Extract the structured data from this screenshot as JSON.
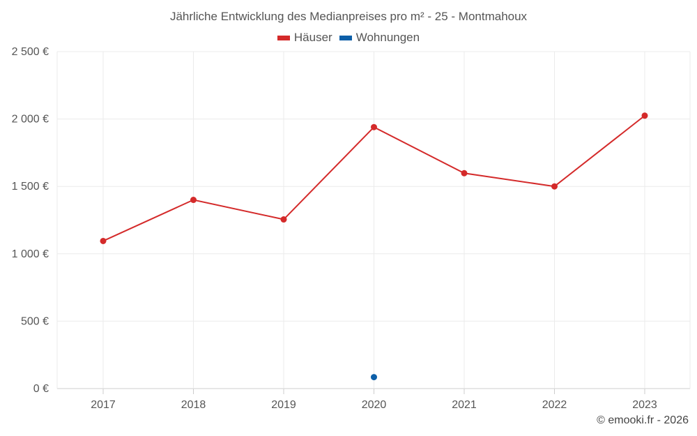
{
  "chart_data": {
    "type": "line",
    "title": "Jährliche Entwicklung des Medianpreises pro m² - 25 - Montmahoux",
    "categories": [
      "2017",
      "2018",
      "2019",
      "2020",
      "2021",
      "2022",
      "2023"
    ],
    "series": [
      {
        "name": "Häuser",
        "color": "#d42a2a",
        "values": [
          1095,
          1400,
          1255,
          1940,
          1598,
          1500,
          2025
        ]
      },
      {
        "name": "Wohnungen",
        "color": "#0d5fa8",
        "values": [
          null,
          null,
          null,
          85,
          null,
          null,
          null
        ]
      }
    ],
    "y_ticks": [
      0,
      500,
      1000,
      1500,
      2000,
      2500
    ],
    "y_tick_labels": [
      "0 €",
      "500 €",
      "1 000 €",
      "1 500 €",
      "2 000 €",
      "2 500 €"
    ],
    "ylim": [
      0,
      2500
    ],
    "grid": true,
    "legend_position": "top-center"
  },
  "credit": "© emooki.fr - 2026"
}
